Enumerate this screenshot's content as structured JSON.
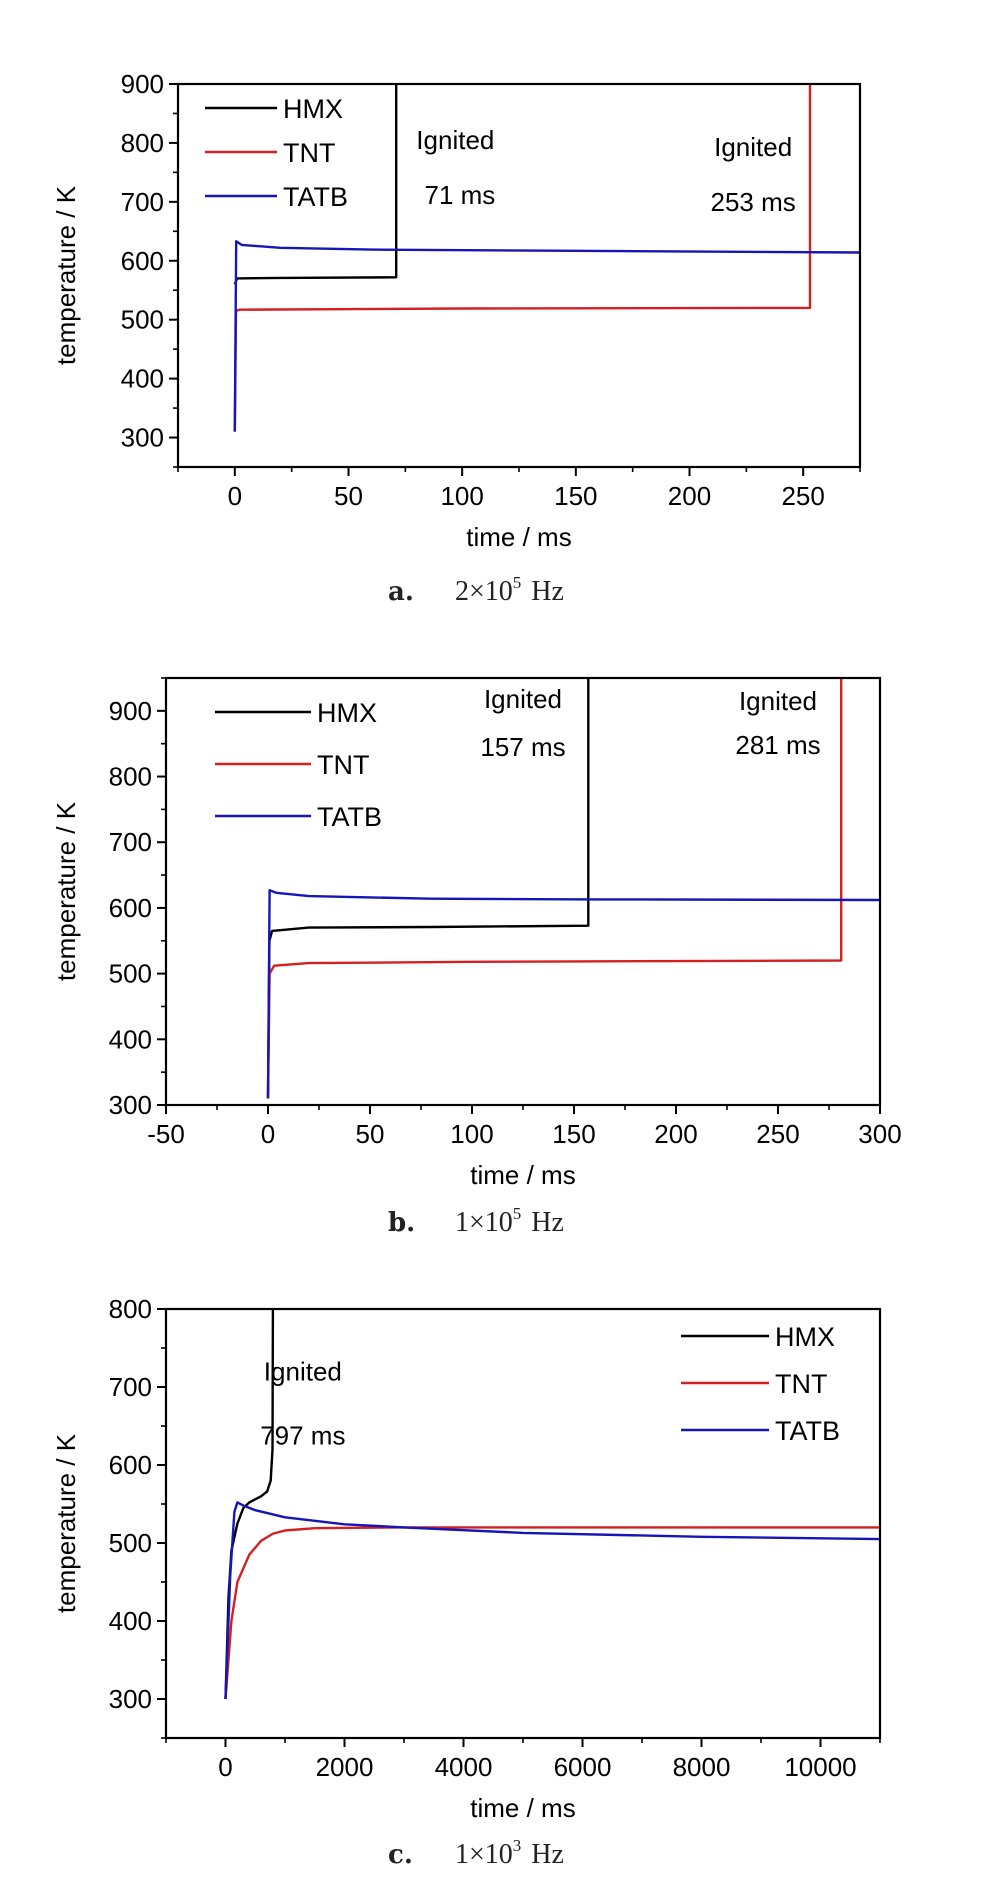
{
  "chart_data": [
    {
      "type": "line",
      "panel": "a.",
      "caption_value": "2×10",
      "caption_exp": "5",
      "caption_unit": "Hz",
      "xlabel": "time / ms",
      "ylabel": "temperature / K",
      "xlim": [
        -25,
        275
      ],
      "ylim": [
        250,
        900
      ],
      "xticks": [
        0,
        50,
        100,
        150,
        200,
        250
      ],
      "yticks": [
        300,
        400,
        500,
        600,
        700,
        800,
        900
      ],
      "legend_position": "top-left",
      "series": [
        {
          "name": "HMX",
          "color": "#000000",
          "points": [
            [
              0,
              560
            ],
            [
              1,
              570
            ],
            [
              20,
              571
            ],
            [
              71,
              572
            ],
            [
              71,
              900
            ]
          ]
        },
        {
          "name": "TNT",
          "color": "#d42020",
          "points": [
            [
              0,
              310
            ],
            [
              0.5,
              515
            ],
            [
              2,
              517
            ],
            [
              100,
              519
            ],
            [
              253,
              520
            ],
            [
              253,
              900
            ]
          ]
        },
        {
          "name": "TATB",
          "color": "#1515b8",
          "points": [
            [
              0,
              310
            ],
            [
              0.6,
              633
            ],
            [
              3,
              627
            ],
            [
              20,
              622
            ],
            [
              60,
              619
            ],
            [
              150,
              617
            ],
            [
              275,
              614
            ]
          ]
        }
      ],
      "annotations": [
        {
          "text": "Ignited",
          "x": 97,
          "y": 805
        },
        {
          "text": "71 ms",
          "x": 99,
          "y": 712
        },
        {
          "text": "Ignited",
          "x": 228,
          "y": 793
        },
        {
          "text": "253 ms",
          "x": 228,
          "y": 700
        }
      ]
    },
    {
      "type": "line",
      "panel": "b.",
      "caption_value": "1×10",
      "caption_exp": "5",
      "caption_unit": "Hz",
      "xlabel": "time / ms",
      "ylabel": "temperature / K",
      "xlim": [
        -50,
        300
      ],
      "ylim": [
        300,
        950
      ],
      "xticks": [
        -50,
        0,
        50,
        100,
        150,
        200,
        250,
        300
      ],
      "yticks": [
        300,
        400,
        500,
        600,
        700,
        800,
        900
      ],
      "legend_position": "top-left",
      "series": [
        {
          "name": "HMX",
          "color": "#000000",
          "points": [
            [
              0,
              310
            ],
            [
              0.7,
              550
            ],
            [
              2,
              565
            ],
            [
              20,
              570
            ],
            [
              80,
              571
            ],
            [
              157,
              573
            ],
            [
              157,
              950
            ]
          ]
        },
        {
          "name": "TNT",
          "color": "#d42020",
          "points": [
            [
              0,
              310
            ],
            [
              0.8,
              500
            ],
            [
              3,
              512
            ],
            [
              20,
              516
            ],
            [
              100,
              518
            ],
            [
              281,
              520
            ],
            [
              281,
              950
            ]
          ]
        },
        {
          "name": "TATB",
          "color": "#1515b8",
          "points": [
            [
              0,
              310
            ],
            [
              0.8,
              627
            ],
            [
              4,
              623
            ],
            [
              20,
              618
            ],
            [
              80,
              614
            ],
            [
              160,
              613
            ],
            [
              300,
              612
            ]
          ]
        }
      ],
      "annotations": [
        {
          "text": "Ignited",
          "x": 125,
          "y": 918
        },
        {
          "text": "157 ms",
          "x": 125,
          "y": 845
        },
        {
          "text": "Ignited",
          "x": 250,
          "y": 915
        },
        {
          "text": "281 ms",
          "x": 250,
          "y": 848
        }
      ]
    },
    {
      "type": "line",
      "panel": "c.",
      "caption_value": "1×10",
      "caption_exp": "3",
      "caption_unit": "Hz",
      "xlabel": "time / ms",
      "ylabel": "temperature / K",
      "xlim": [
        -1000,
        11000
      ],
      "ylim": [
        250,
        800
      ],
      "xticks": [
        0,
        2000,
        4000,
        6000,
        8000,
        10000
      ],
      "yticks": [
        300,
        400,
        500,
        600,
        700,
        800
      ],
      "legend_position": "top-right",
      "series": [
        {
          "name": "HMX",
          "color": "#000000",
          "points": [
            [
              0,
              300
            ],
            [
              50,
              430
            ],
            [
              100,
              490
            ],
            [
              200,
              525
            ],
            [
              300,
              545
            ],
            [
              400,
              552
            ],
            [
              500,
              556
            ],
            [
              600,
              560
            ],
            [
              700,
              566
            ],
            [
              760,
              580
            ],
            [
              790,
              620
            ],
            [
              797,
              800
            ]
          ]
        },
        {
          "name": "TNT",
          "color": "#d42020",
          "points": [
            [
              0,
              300
            ],
            [
              100,
              400
            ],
            [
              200,
              450
            ],
            [
              400,
              485
            ],
            [
              600,
              503
            ],
            [
              800,
              512
            ],
            [
              1000,
              516
            ],
            [
              1500,
              519
            ],
            [
              3000,
              520
            ],
            [
              11000,
              520
            ]
          ]
        },
        {
          "name": "TATB",
          "color": "#1515b8",
          "points": [
            [
              0,
              300
            ],
            [
              80,
              460
            ],
            [
              150,
              540
            ],
            [
              200,
              552
            ],
            [
              300,
              548
            ],
            [
              500,
              542
            ],
            [
              1000,
              533
            ],
            [
              2000,
              524
            ],
            [
              3000,
              520
            ],
            [
              5000,
              513
            ],
            [
              8000,
              508
            ],
            [
              11000,
              505
            ]
          ]
        }
      ],
      "annotations": [
        {
          "text": "Ignited",
          "x": 1300,
          "y": 720
        },
        {
          "text": "797 ms",
          "x": 1300,
          "y": 638
        }
      ]
    }
  ]
}
